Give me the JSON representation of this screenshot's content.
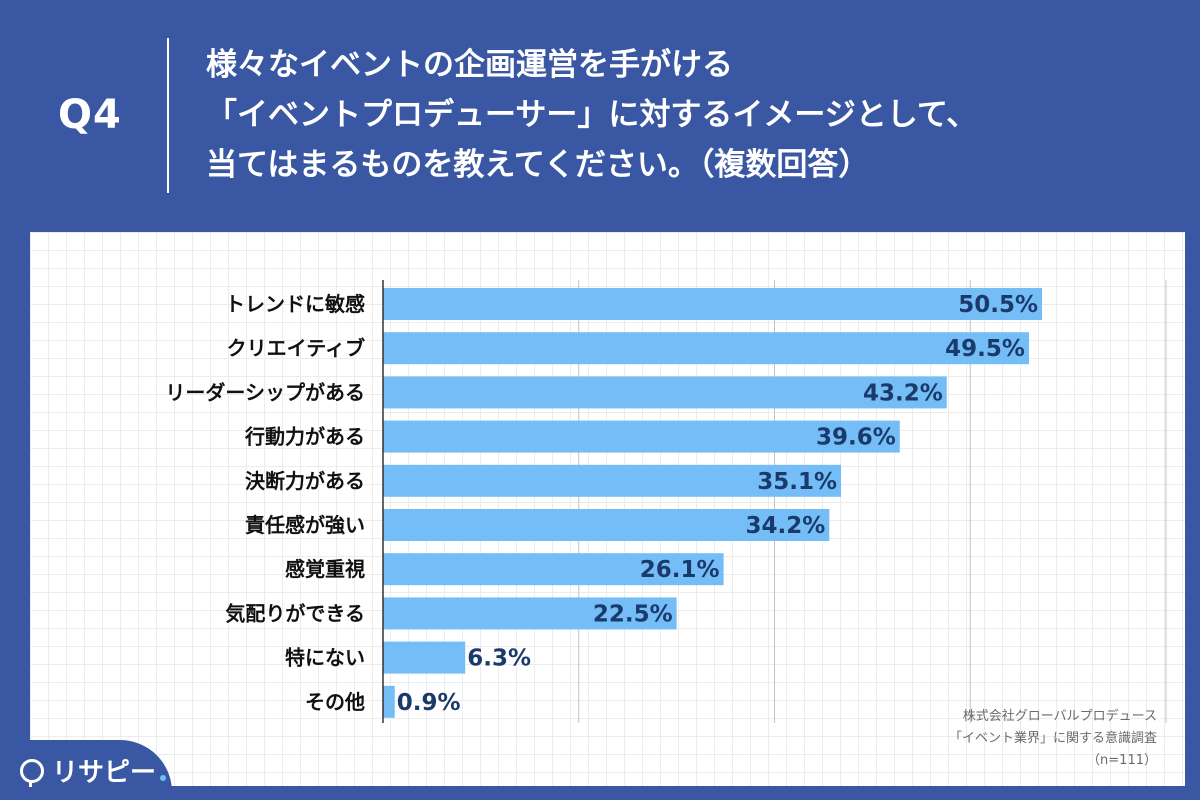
{
  "header": {
    "q_label": "Q4",
    "question_lines": [
      "様々なイベントの企画運営を手がける",
      "「イベントプロデューサー」に対するイメージとして、",
      "当てはまるものを教えてください。（複数回答）"
    ]
  },
  "source": {
    "line1": "株式会社グローバルプロデュース",
    "line2": "「イベント業界」に関する意識調査",
    "line3": "（n=111）"
  },
  "logo": {
    "text": "リサピー"
  },
  "colors": {
    "bar": "#74bdf7",
    "label_text": "#1a3a6b",
    "header_bg": "#3a57a3"
  },
  "chart_data": {
    "type": "bar",
    "orientation": "horizontal",
    "categories": [
      "トレンドに敏感",
      "クリエイティブ",
      "リーダーシップがある",
      "行動力がある",
      "決断力がある",
      "責任感が強い",
      "感覚重視",
      "気配りができる",
      "特にない",
      "その他"
    ],
    "values": [
      50.5,
      49.5,
      43.2,
      39.6,
      35.1,
      34.2,
      26.1,
      22.5,
      6.3,
      0.9
    ],
    "value_labels": [
      "50.5%",
      "49.5%",
      "43.2%",
      "39.6%",
      "35.1%",
      "34.2%",
      "26.1%",
      "22.5%",
      "6.3%",
      "0.9%"
    ],
    "xlim": [
      0,
      60
    ],
    "grid": true
  }
}
